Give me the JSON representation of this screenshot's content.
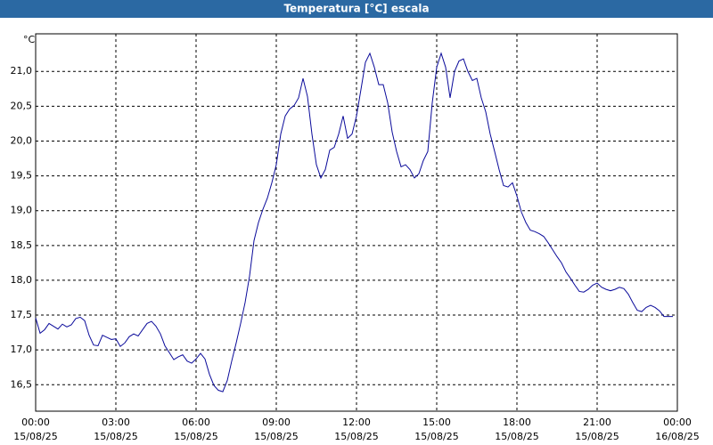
{
  "chart_data": {
    "type": "line",
    "title": "Temperatura [°C] escala",
    "y_unit": "°C",
    "xlim": [
      0,
      1440
    ],
    "xticks": [
      {
        "value": 0,
        "label": "00:00"
      },
      {
        "value": 180,
        "label": "03:00"
      },
      {
        "value": 360,
        "label": "06:00"
      },
      {
        "value": 540,
        "label": "09:00"
      },
      {
        "value": 720,
        "label": "12:00"
      },
      {
        "value": 900,
        "label": "15:00"
      },
      {
        "value": 1080,
        "label": "18:00"
      },
      {
        "value": 1260,
        "label": "21:00"
      },
      {
        "value": 1440,
        "label": "00:00"
      }
    ],
    "xtick_dates": [
      "15/08/25",
      "15/08/25",
      "15/08/25",
      "15/08/25",
      "15/08/25",
      "15/08/25",
      "15/08/25",
      "15/08/25",
      "16/08/25"
    ],
    "ylim": [
      16.12,
      21.54
    ],
    "yticks": [
      {
        "value": 16.5,
        "label": "16,5"
      },
      {
        "value": 17.0,
        "label": "17,0"
      },
      {
        "value": 17.5,
        "label": "17,5"
      },
      {
        "value": 18.0,
        "label": "18,0"
      },
      {
        "value": 18.5,
        "label": "18,5"
      },
      {
        "value": 19.0,
        "label": "19,0"
      },
      {
        "value": 19.5,
        "label": "19,5"
      },
      {
        "value": 20.0,
        "label": "20,0"
      },
      {
        "value": 20.5,
        "label": "20,5"
      },
      {
        "value": 21.0,
        "label": "21,0"
      }
    ],
    "grid": true,
    "x": [
      0,
      10,
      20,
      30,
      40,
      50,
      60,
      70,
      80,
      90,
      100,
      110,
      120,
      130,
      140,
      150,
      160,
      170,
      180,
      190,
      200,
      210,
      220,
      230,
      240,
      250,
      260,
      270,
      280,
      290,
      300,
      310,
      320,
      330,
      340,
      350,
      360,
      370,
      380,
      390,
      400,
      410,
      420,
      430,
      440,
      450,
      460,
      470,
      480,
      490,
      500,
      510,
      520,
      530,
      540,
      550,
      560,
      570,
      580,
      590,
      600,
      610,
      620,
      630,
      640,
      650,
      660,
      670,
      680,
      690,
      700,
      710,
      720,
      730,
      740,
      750,
      760,
      770,
      780,
      790,
      800,
      810,
      820,
      830,
      840,
      850,
      860,
      870,
      880,
      890,
      900,
      910,
      920,
      930,
      940,
      950,
      960,
      970,
      980,
      990,
      1000,
      1010,
      1020,
      1030,
      1040,
      1050,
      1060,
      1070,
      1080,
      1090,
      1100,
      1110,
      1120,
      1130,
      1140,
      1150,
      1160,
      1170,
      1180,
      1190,
      1200,
      1210,
      1220,
      1230,
      1240,
      1250,
      1260,
      1270,
      1280,
      1290,
      1300,
      1310,
      1320,
      1330,
      1340,
      1350,
      1360,
      1370,
      1380,
      1390,
      1400,
      1410,
      1420,
      1430
    ],
    "series": [
      {
        "color": "#0a0a9a",
        "values": [
          17.46,
          17.24,
          17.29,
          17.38,
          17.34,
          17.3,
          17.37,
          17.33,
          17.36,
          17.45,
          17.47,
          17.42,
          17.21,
          17.07,
          17.06,
          17.21,
          17.18,
          17.15,
          17.16,
          17.05,
          17.1,
          17.19,
          17.23,
          17.2,
          17.29,
          17.38,
          17.41,
          17.34,
          17.23,
          17.06,
          16.96,
          16.86,
          16.9,
          16.93,
          16.84,
          16.81,
          16.87,
          16.95,
          16.87,
          16.65,
          16.49,
          16.42,
          16.4,
          16.56,
          16.84,
          17.1,
          17.38,
          17.68,
          18.06,
          18.57,
          18.83,
          19.02,
          19.18,
          19.4,
          19.66,
          20.1,
          20.36,
          20.46,
          20.51,
          20.62,
          20.9,
          20.64,
          20.1,
          19.66,
          19.47,
          19.59,
          19.87,
          19.91,
          20.1,
          20.36,
          20.04,
          20.1,
          20.36,
          20.74,
          21.13,
          21.26,
          21.06,
          20.81,
          20.81,
          20.55,
          20.13,
          19.85,
          19.63,
          19.66,
          19.59,
          19.47,
          19.53,
          19.72,
          19.85,
          20.55,
          21.06,
          21.26,
          21.06,
          20.62,
          21.0,
          21.15,
          21.18,
          21.0,
          20.87,
          20.9,
          20.62,
          20.42,
          20.1,
          19.85,
          19.59,
          19.36,
          19.34,
          19.4,
          19.21,
          18.98,
          18.83,
          18.72,
          18.7,
          18.67,
          18.63,
          18.54,
          18.44,
          18.34,
          18.25,
          18.12,
          18.03,
          17.93,
          17.84,
          17.83,
          17.87,
          17.93,
          17.96,
          17.9,
          17.87,
          17.85,
          17.87,
          17.9,
          17.88,
          17.8,
          17.68,
          17.57,
          17.55,
          17.61,
          17.64,
          17.61,
          17.56,
          17.48,
          17.48,
          17.48
        ]
      }
    ]
  }
}
